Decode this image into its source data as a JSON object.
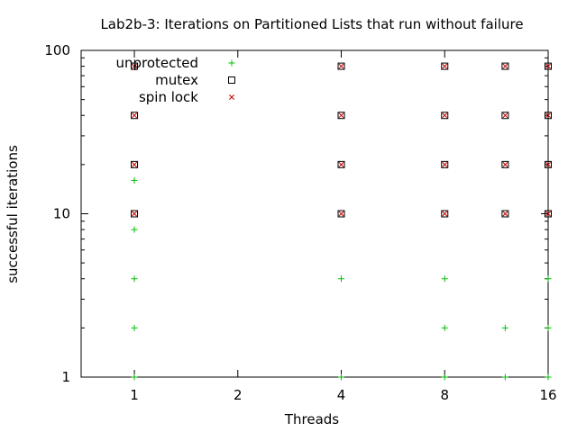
{
  "chart_data": {
    "type": "scatter",
    "title": "Lab2b-3: Iterations on Partitioned Lists that run without failure",
    "xlabel": "Threads",
    "ylabel": "successful iterations",
    "xscale": "log2",
    "yscale": "log10",
    "xlim": [
      0.7,
      16
    ],
    "ylim": [
      1,
      100
    ],
    "xticks": [
      1,
      2,
      4,
      8,
      16
    ],
    "xtick_labels": [
      "1",
      "2",
      "4",
      "8",
      "16"
    ],
    "yticks": [
      1,
      10,
      100
    ],
    "ytick_labels": [
      "1",
      "10",
      "100"
    ],
    "grid": false,
    "legend_position": "top-left",
    "series": [
      {
        "name": "unprotected",
        "marker": "plus",
        "color": "#00c000",
        "points": [
          [
            1,
            1
          ],
          [
            1,
            2
          ],
          [
            1,
            4
          ],
          [
            1,
            8
          ],
          [
            1,
            16
          ],
          [
            4,
            1
          ],
          [
            4,
            4
          ],
          [
            8,
            1
          ],
          [
            8,
            2
          ],
          [
            8,
            4
          ],
          [
            12,
            1
          ],
          [
            12,
            2
          ],
          [
            16,
            1
          ],
          [
            16,
            2
          ],
          [
            16,
            4
          ]
        ]
      },
      {
        "name": "mutex",
        "marker": "square",
        "color": "#000000",
        "points": [
          [
            1,
            10
          ],
          [
            1,
            20
          ],
          [
            1,
            40
          ],
          [
            1,
            80
          ],
          [
            4,
            10
          ],
          [
            4,
            20
          ],
          [
            4,
            40
          ],
          [
            4,
            80
          ],
          [
            8,
            10
          ],
          [
            8,
            20
          ],
          [
            8,
            40
          ],
          [
            8,
            80
          ],
          [
            12,
            10
          ],
          [
            12,
            20
          ],
          [
            12,
            40
          ],
          [
            12,
            80
          ],
          [
            16,
            10
          ],
          [
            16,
            20
          ],
          [
            16,
            40
          ],
          [
            16,
            80
          ]
        ]
      },
      {
        "name": "spin lock",
        "marker": "cross",
        "color": "#c00000",
        "points": [
          [
            1,
            10
          ],
          [
            1,
            20
          ],
          [
            1,
            40
          ],
          [
            1,
            80
          ],
          [
            4,
            10
          ],
          [
            4,
            20
          ],
          [
            4,
            40
          ],
          [
            4,
            80
          ],
          [
            8,
            10
          ],
          [
            8,
            20
          ],
          [
            8,
            40
          ],
          [
            8,
            80
          ],
          [
            12,
            10
          ],
          [
            12,
            20
          ],
          [
            12,
            40
          ],
          [
            12,
            80
          ],
          [
            16,
            10
          ],
          [
            16,
            20
          ],
          [
            16,
            40
          ],
          [
            16,
            80
          ]
        ]
      }
    ]
  }
}
